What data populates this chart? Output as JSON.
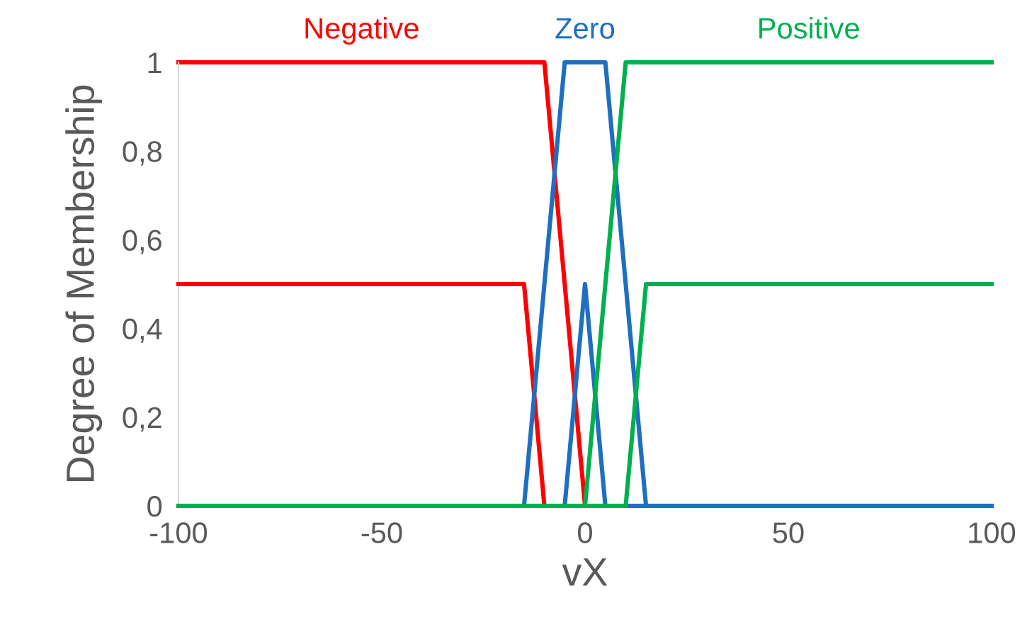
{
  "chart_data": {
    "type": "line",
    "xlabel": "vX",
    "ylabel": "Degree of Membership",
    "xlim": [
      -100,
      100
    ],
    "ylim": [
      0,
      1
    ],
    "xticks": [
      -100,
      -50,
      0,
      50,
      100
    ],
    "yticks": [
      0,
      {
        "value": 0.2,
        "label": "0,2"
      },
      {
        "value": 0.4,
        "label": "0,4"
      },
      {
        "value": 0.6,
        "label": "0,6"
      },
      {
        "value": 0.8,
        "label": "0,8"
      },
      1
    ],
    "grid": false,
    "legend": false,
    "marker": "none",
    "line_style": "solid",
    "series": [
      {
        "name": "Negative",
        "color": "#ff0000",
        "x": [
          -100,
          -10,
          0,
          100
        ],
        "values": [
          1,
          1,
          0,
          0
        ]
      },
      {
        "color": "#ff0000",
        "x": [
          -100,
          -15,
          -10,
          100
        ],
        "values": [
          0.5,
          0.5,
          0,
          0
        ]
      },
      {
        "name": "Zero",
        "color": "#1f6fc0",
        "x": [
          -100,
          -15,
          -5,
          5,
          15,
          100
        ],
        "values": [
          0,
          0,
          1,
          1,
          0,
          0
        ]
      },
      {
        "color": "#1f6fc0",
        "x": [
          -100,
          -5,
          0,
          5,
          100
        ],
        "values": [
          0,
          0,
          0.5,
          0,
          0
        ]
      },
      {
        "name": "Positive",
        "color": "#00b050",
        "x": [
          -100,
          0,
          10,
          100
        ],
        "values": [
          0,
          0,
          1,
          1
        ]
      },
      {
        "color": "#00b050",
        "x": [
          -100,
          10,
          15,
          100
        ],
        "values": [
          0,
          0,
          0.5,
          0.5
        ]
      }
    ]
  }
}
